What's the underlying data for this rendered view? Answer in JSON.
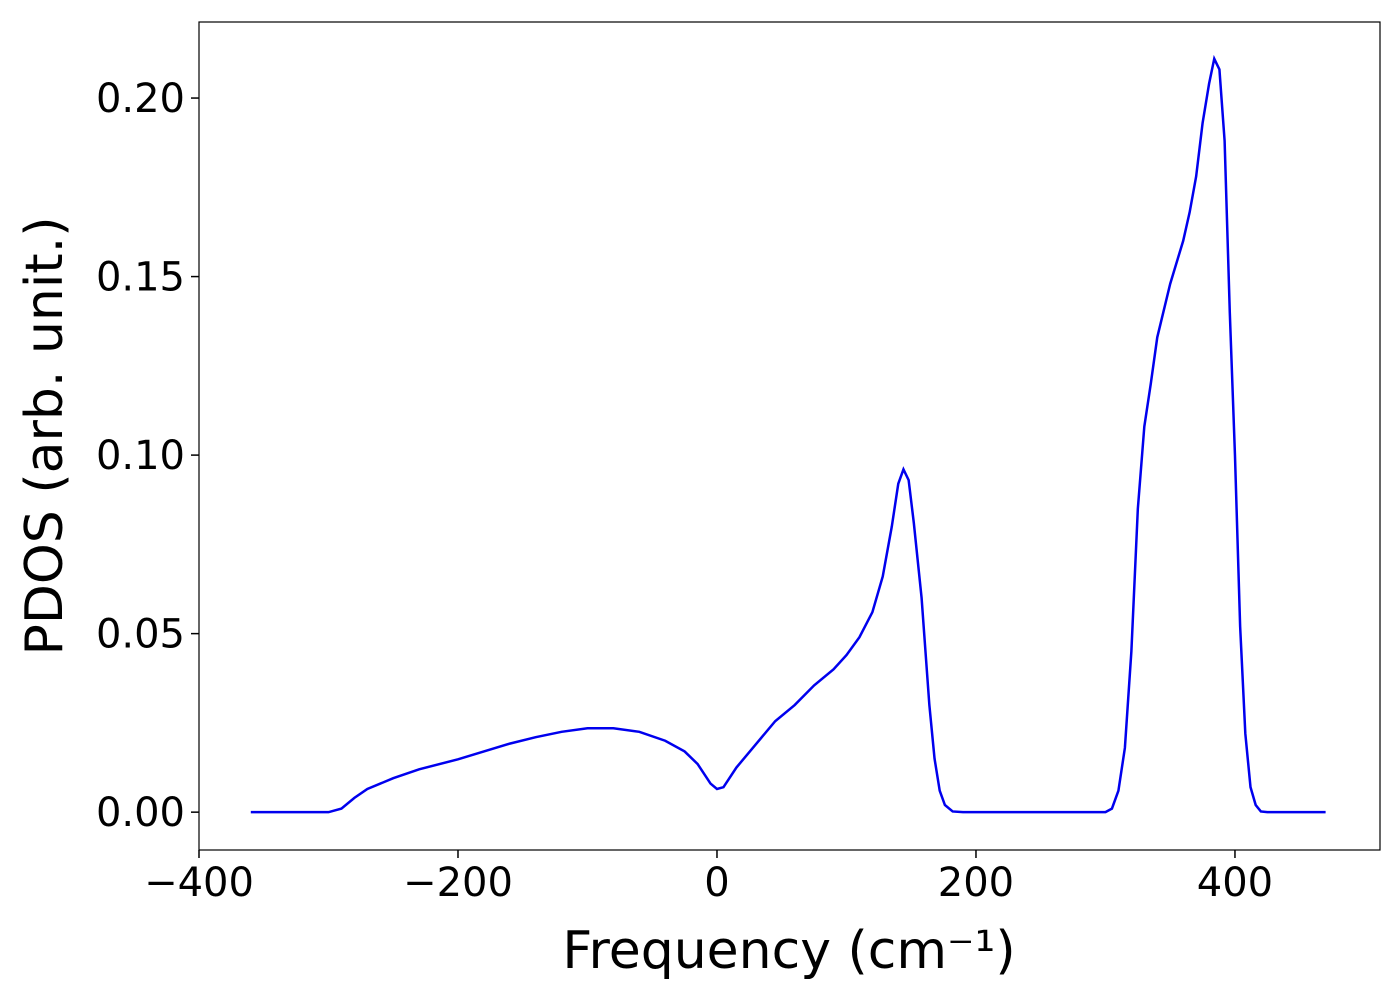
{
  "chart_data": {
    "type": "line",
    "xlabel": "Frequency (cm⁻¹)",
    "ylabel": "PDOS (arb. unit.)",
    "xlim": [
      -400,
      512
    ],
    "ylim": [
      -0.0106,
      0.2213
    ],
    "xticks": [
      {
        "value": -400,
        "label": "−400"
      },
      {
        "value": -200,
        "label": "−200"
      },
      0,
      200,
      400
    ],
    "yticks": [
      {
        "value": 0,
        "label": "0.00"
      },
      {
        "value": 0.05,
        "label": "0.05"
      },
      {
        "value": 0.1,
        "label": "0.10"
      },
      {
        "value": 0.15,
        "label": "0.15"
      },
      {
        "value": 0.2,
        "label": "0.20"
      }
    ],
    "x": [
      -360,
      -300,
      -290,
      -280,
      -270,
      -250,
      -230,
      -200,
      -180,
      -160,
      -140,
      -120,
      -100,
      -80,
      -60,
      -40,
      -25,
      -15,
      -5,
      0,
      5,
      15,
      30,
      45,
      60,
      75,
      90,
      100,
      110,
      120,
      128,
      135,
      140,
      144,
      148,
      152,
      158,
      164,
      168,
      172,
      176,
      182,
      190,
      300,
      305,
      310,
      315,
      320,
      325,
      330,
      335,
      340,
      350,
      360,
      365,
      370,
      375,
      380,
      384,
      388,
      392,
      396,
      400,
      404,
      408,
      412,
      416,
      420,
      425,
      470
    ],
    "series": [
      {
        "color": "#0000ee",
        "values": [
          0,
          0,
          0.001,
          0.004,
          0.0065,
          0.0095,
          0.012,
          0.0148,
          0.017,
          0.0192,
          0.021,
          0.0225,
          0.0235,
          0.0235,
          0.0225,
          0.02,
          0.017,
          0.0135,
          0.008,
          0.0065,
          0.007,
          0.0125,
          0.019,
          0.0255,
          0.03,
          0.0355,
          0.04,
          0.044,
          0.049,
          0.056,
          0.066,
          0.08,
          0.092,
          0.096,
          0.093,
          0.081,
          0.06,
          0.03,
          0.015,
          0.006,
          0.002,
          0.0002,
          0,
          0,
          0.001,
          0.006,
          0.018,
          0.045,
          0.085,
          0.108,
          0.12,
          0.133,
          0.148,
          0.16,
          0.168,
          0.178,
          0.193,
          0.204,
          0.211,
          0.208,
          0.188,
          0.14,
          0.1,
          0.052,
          0.022,
          0.007,
          0.002,
          0.0002,
          0,
          0
        ]
      }
    ]
  }
}
